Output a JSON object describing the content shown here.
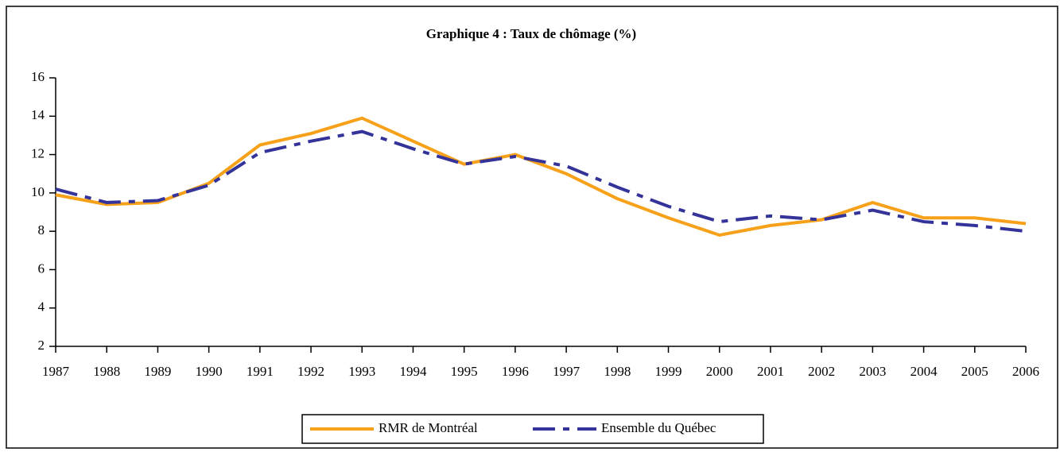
{
  "chart_data": {
    "type": "line",
    "title": "Graphique 4 : Taux de chômage (%)",
    "categories": [
      "1987",
      "1988",
      "1989",
      "1990",
      "1991",
      "1992",
      "1993",
      "1994",
      "1995",
      "1996",
      "1997",
      "1998",
      "1999",
      "2000",
      "2001",
      "2002",
      "2003",
      "2004",
      "2005",
      "2006"
    ],
    "series": [
      {
        "name": "RMR de Montréal",
        "color": "#f7a11a",
        "values": [
          9.9,
          9.4,
          9.5,
          10.5,
          12.5,
          13.1,
          13.9,
          12.7,
          11.5,
          12.0,
          11.0,
          9.7,
          8.7,
          7.8,
          8.3,
          8.6,
          9.5,
          8.7,
          8.7,
          8.4
        ]
      },
      {
        "name": "Ensemble du Québec",
        "color": "#333399",
        "values": [
          10.2,
          9.5,
          9.6,
          10.4,
          12.1,
          12.7,
          13.2,
          12.3,
          11.5,
          11.9,
          11.4,
          10.3,
          9.3,
          8.5,
          8.8,
          8.6,
          9.1,
          8.5,
          8.3,
          8.0
        ]
      }
    ],
    "ylim": [
      2,
      16
    ],
    "yticks": [
      2,
      4,
      6,
      8,
      10,
      12,
      14,
      16
    ],
    "legend": "bottom"
  }
}
